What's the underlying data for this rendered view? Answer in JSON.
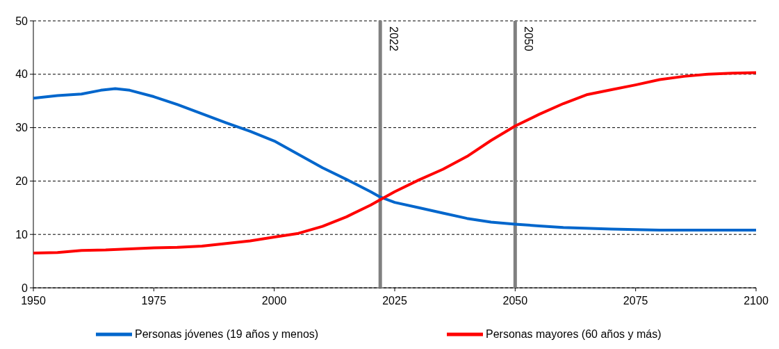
{
  "chart_data": {
    "type": "line",
    "xlim": [
      1950,
      2100
    ],
    "xticks": [
      1950,
      1975,
      2000,
      2025,
      2050,
      2075,
      2100
    ],
    "ylim": [
      0,
      50
    ],
    "yticks": [
      0,
      10,
      20,
      30,
      40,
      50
    ],
    "grid": "y",
    "legend": "bottom",
    "line_style": "solid",
    "marker": "none",
    "series": [
      {
        "name": "Personas jóvenes (19 años y menos)",
        "color": "#0066cc",
        "x": [
          1950,
          1955,
          1960,
          1964,
          1967,
          1970,
          1975,
          1980,
          1985,
          1990,
          1995,
          2000,
          2005,
          2010,
          2015,
          2020,
          2022,
          2025,
          2030,
          2035,
          2040,
          2045,
          2050,
          2055,
          2060,
          2070,
          2080,
          2090,
          2100
        ],
        "values": [
          35.5,
          36,
          36.3,
          37,
          37.3,
          37,
          35.8,
          34.3,
          32.6,
          30.9,
          29.3,
          27.5,
          25,
          22.5,
          20.3,
          18,
          17,
          16,
          15,
          14,
          13,
          12.3,
          11.9,
          11.6,
          11.3,
          11,
          10.8,
          10.8,
          10.8
        ]
      },
      {
        "name": "Personas mayores (60 años y más)",
        "color": "#ff0000",
        "x": [
          1950,
          1955,
          1960,
          1965,
          1970,
          1975,
          1980,
          1985,
          1990,
          1995,
          2000,
          2005,
          2010,
          2015,
          2020,
          2022,
          2025,
          2030,
          2035,
          2040,
          2045,
          2050,
          2055,
          2060,
          2065,
          2070,
          2075,
          2080,
          2085,
          2090,
          2095,
          2100
        ],
        "values": [
          6.5,
          6.6,
          7,
          7.1,
          7.3,
          7.5,
          7.6,
          7.8,
          8.3,
          8.8,
          9.5,
          10.2,
          11.5,
          13.3,
          15.5,
          16.5,
          18,
          20.2,
          22.2,
          24.6,
          27.6,
          30.3,
          32.5,
          34.5,
          36.2,
          37.1,
          38,
          39,
          39.6,
          40,
          40.2,
          40.3
        ]
      }
    ],
    "ref_lines": [
      {
        "axis": "x",
        "value": 2022,
        "label": "2022",
        "color": "#808080"
      },
      {
        "axis": "x",
        "value": 2050,
        "label": "2050",
        "color": "#808080"
      }
    ]
  }
}
